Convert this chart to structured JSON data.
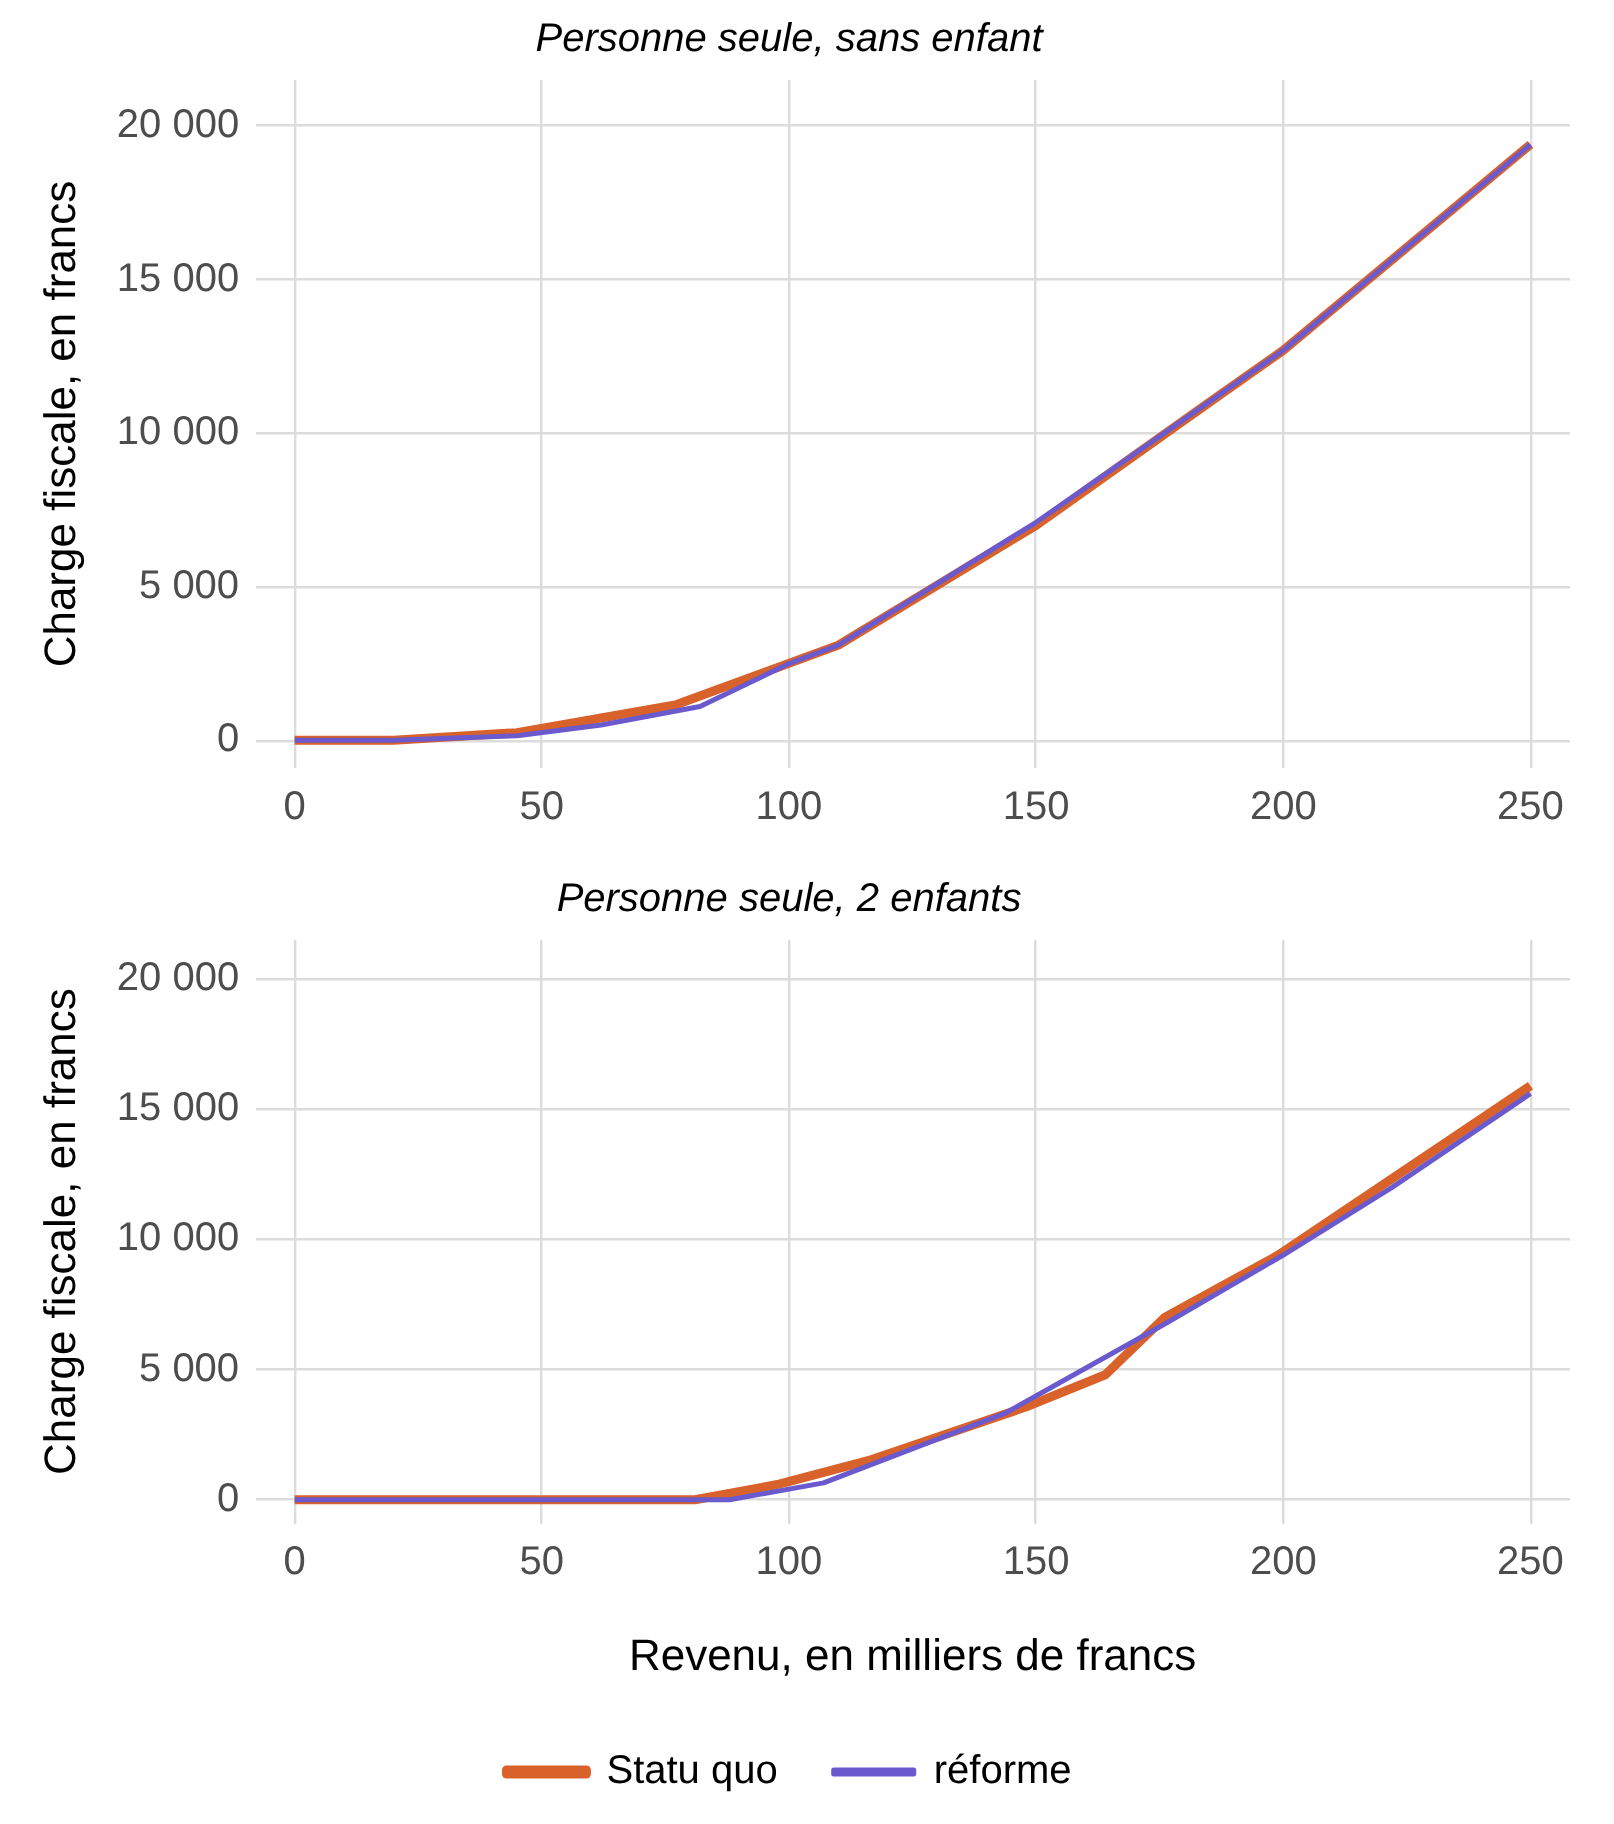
{
  "chart_data": [
    {
      "type": "line",
      "title": "Personne seule, sans enfant",
      "ylabel": "Charge fiscale, en francs",
      "xlim": [
        -8,
        258
      ],
      "xticks": [
        0,
        50,
        100,
        150,
        200,
        250
      ],
      "ylim": [
        -900,
        21500
      ],
      "yticks": [
        0,
        {
          "value": 5000,
          "label": "5 000"
        },
        {
          "value": 10000,
          "label": "10 000"
        },
        {
          "value": 15000,
          "label": "15 000"
        },
        {
          "value": 20000,
          "label": "20 000"
        }
      ],
      "grid": true,
      "legend": false,
      "marker": "none",
      "series": [
        {
          "color": "#d9622b",
          "x": [
            0,
            20,
            45,
            77,
            110,
            150,
            185,
            200,
            250
          ],
          "values": [
            0,
            0,
            250,
            1150,
            3100,
            7000,
            11000,
            12700,
            19400
          ]
        },
        {
          "color": "#6a5acd",
          "x": [
            0,
            20,
            45,
            62,
            82,
            100,
            110,
            150,
            200,
            250
          ],
          "values": [
            0,
            0,
            150,
            500,
            1100,
            2500,
            3100,
            7100,
            12700,
            19400
          ]
        }
      ]
    },
    {
      "type": "line",
      "title": "Personne seule, 2 enfants",
      "ylabel": "Charge fiscale, en francs",
      "xlabel": "Revenu, en milliers de francs",
      "xlim": [
        -8,
        258
      ],
      "xticks": [
        0,
        50,
        100,
        150,
        200,
        250
      ],
      "ylim": [
        -900,
        21500
      ],
      "yticks": [
        0,
        {
          "value": 5000,
          "label": "5 000"
        },
        {
          "value": 10000,
          "label": "10 000"
        },
        {
          "value": 15000,
          "label": "15 000"
        },
        {
          "value": 20000,
          "label": "20 000"
        }
      ],
      "grid": true,
      "legend": "bottom",
      "marker": "none",
      "series": [
        {
          "name": "Statu quo",
          "color": "#d9622b",
          "x": [
            0,
            81,
            98,
            116,
            148,
            164,
            176,
            199,
            250
          ],
          "values": [
            0,
            0,
            600,
            1500,
            3570,
            4800,
            7000,
            9400,
            15900
          ]
        },
        {
          "name": "réforme",
          "color": "#6a5acd",
          "x": [
            0,
            88,
            107,
            144,
            176,
            200,
            222,
            250
          ],
          "values": [
            0,
            0,
            650,
            3350,
            6750,
            9400,
            12000,
            15600
          ]
        }
      ]
    }
  ]
}
